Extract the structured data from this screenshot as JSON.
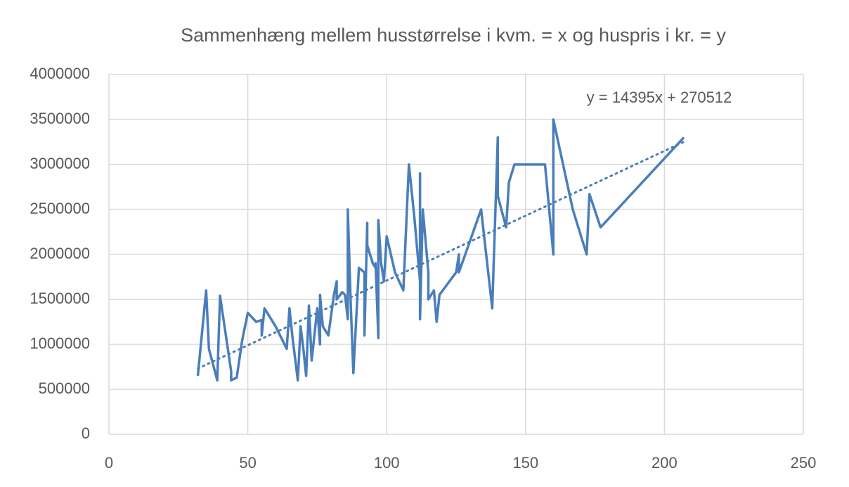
{
  "chart_data": {
    "type": "line",
    "title": "Sammenhæng mellem husstørrelse i kvm. = x og huspris i kr. = y",
    "x": [
      32,
      35,
      36,
      39,
      40,
      44,
      44,
      46,
      48,
      50,
      53,
      55,
      55,
      56,
      60,
      64,
      65,
      66,
      68,
      69,
      70,
      71,
      72,
      73,
      75,
      76,
      76,
      77,
      79,
      81,
      82,
      82,
      84,
      85,
      86,
      86,
      87,
      88,
      90,
      92,
      92,
      93,
      93,
      95,
      96,
      96,
      97,
      97,
      98,
      99,
      100,
      103,
      106,
      108,
      110,
      112,
      112,
      112,
      113,
      115,
      115,
      117,
      118,
      119,
      125,
      126,
      126,
      134,
      138,
      140,
      140,
      143,
      144,
      146,
      157,
      160,
      160,
      167,
      172,
      173,
      177,
      207
    ],
    "series": [
      {
        "color": "#4a7ebb",
        "values": [
          650000,
          1600000,
          950000,
          600000,
          1540000,
          700000,
          600000,
          630000,
          1050000,
          1350000,
          1250000,
          1270000,
          1100000,
          1400000,
          1200000,
          950000,
          1400000,
          1100000,
          600000,
          1200000,
          950000,
          650000,
          1430000,
          820000,
          1400000,
          1000000,
          1550000,
          1200000,
          1100000,
          1550000,
          1700000,
          1500000,
          1580000,
          1550000,
          1280000,
          2500000,
          1500000,
          680000,
          1850000,
          1800000,
          1100000,
          2350000,
          2100000,
          1900000,
          1850000,
          1900000,
          1070000,
          2380000,
          1900000,
          1700000,
          2200000,
          1800000,
          1600000,
          3000000,
          2400000,
          1700000,
          2900000,
          1280000,
          2500000,
          1800000,
          1500000,
          1600000,
          1250000,
          1550000,
          1800000,
          2000000,
          1800000,
          2500000,
          1400000,
          3300000,
          2650000,
          2300000,
          2800000,
          3000000,
          3000000,
          2000000,
          3500000,
          2500000,
          2000000,
          2670000,
          2300000,
          3300000
        ]
      }
    ],
    "trendline": {
      "slope": 14395,
      "intercept": 270512,
      "label": "y = 14395x + 270512"
    },
    "xlim": [
      0,
      250
    ],
    "xticks": [
      0,
      50,
      100,
      150,
      200,
      250
    ],
    "ylim": [
      0,
      4000000
    ],
    "yticks": [
      0,
      500000,
      1000000,
      1500000,
      2000000,
      2500000,
      3000000,
      3500000,
      4000000
    ],
    "grid": true
  }
}
